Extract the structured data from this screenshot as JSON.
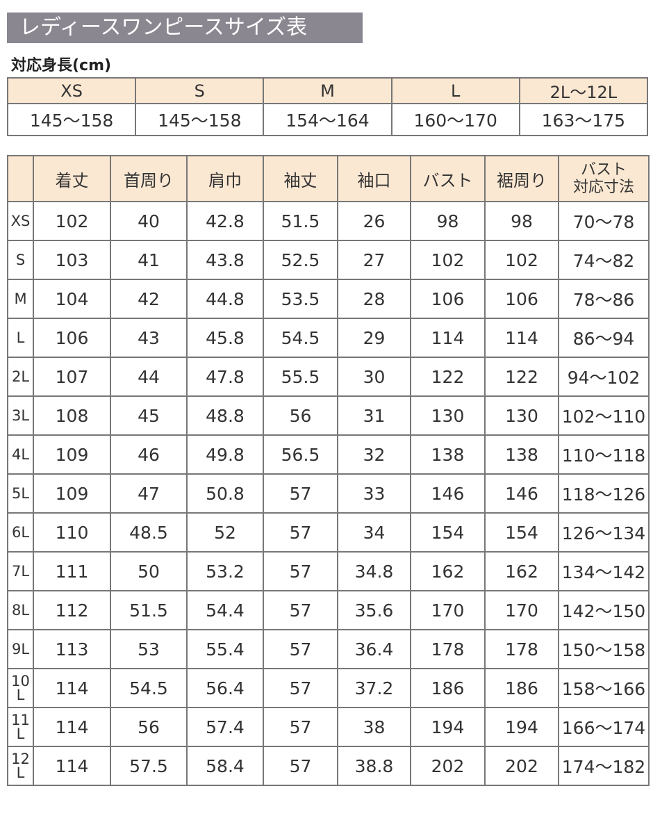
{
  "title": "レディースワンピースサイズ表",
  "height_label": "対応身長(cm)",
  "height_table": {
    "sizes": [
      "XS",
      "S",
      "M",
      "L",
      "2L〜12L"
    ],
    "ranges": [
      "145〜158",
      "145〜158",
      "154〜164",
      "160〜170",
      "163〜175"
    ]
  },
  "header_color": "#fbe8d3",
  "title_bg": "#8b8791",
  "size_table": {
    "columns": [
      "着丈",
      "首周り",
      "肩巾",
      "袖丈",
      "袖口",
      "バスト",
      "裾周り",
      "バスト\n対応寸法"
    ],
    "rows": [
      {
        "size": "XS",
        "values": [
          "102",
          "40",
          "42.8",
          "51.5",
          "26",
          "98",
          "98",
          "70〜78"
        ]
      },
      {
        "size": "S",
        "values": [
          "103",
          "41",
          "43.8",
          "52.5",
          "27",
          "102",
          "102",
          "74〜82"
        ]
      },
      {
        "size": "M",
        "values": [
          "104",
          "42",
          "44.8",
          "53.5",
          "28",
          "106",
          "106",
          "78〜86"
        ]
      },
      {
        "size": "L",
        "values": [
          "106",
          "43",
          "45.8",
          "54.5",
          "29",
          "114",
          "114",
          "86〜94"
        ]
      },
      {
        "size": "2L",
        "values": [
          "107",
          "44",
          "47.8",
          "55.5",
          "30",
          "122",
          "122",
          "94〜102"
        ]
      },
      {
        "size": "3L",
        "values": [
          "108",
          "45",
          "48.8",
          "56",
          "31",
          "130",
          "130",
          "102〜110"
        ]
      },
      {
        "size": "4L",
        "values": [
          "109",
          "46",
          "49.8",
          "56.5",
          "32",
          "138",
          "138",
          "110〜118"
        ]
      },
      {
        "size": "5L",
        "values": [
          "109",
          "47",
          "50.8",
          "57",
          "33",
          "146",
          "146",
          "118〜126"
        ]
      },
      {
        "size": "6L",
        "values": [
          "110",
          "48.5",
          "52",
          "57",
          "34",
          "154",
          "154",
          "126〜134"
        ]
      },
      {
        "size": "7L",
        "values": [
          "111",
          "50",
          "53.2",
          "57",
          "34.8",
          "162",
          "162",
          "134〜142"
        ]
      },
      {
        "size": "8L",
        "values": [
          "112",
          "51.5",
          "54.4",
          "57",
          "35.6",
          "170",
          "170",
          "142〜150"
        ]
      },
      {
        "size": "9L",
        "values": [
          "113",
          "53",
          "55.4",
          "57",
          "36.4",
          "178",
          "178",
          "150〜158"
        ]
      },
      {
        "size": "10L",
        "values": [
          "114",
          "54.5",
          "56.4",
          "57",
          "37.2",
          "186",
          "186",
          "158〜166"
        ]
      },
      {
        "size": "11L",
        "values": [
          "114",
          "56",
          "57.4",
          "57",
          "38",
          "194",
          "194",
          "166〜174"
        ]
      },
      {
        "size": "12L",
        "values": [
          "114",
          "57.5",
          "58.4",
          "57",
          "38.8",
          "202",
          "202",
          "174〜182"
        ]
      }
    ]
  }
}
